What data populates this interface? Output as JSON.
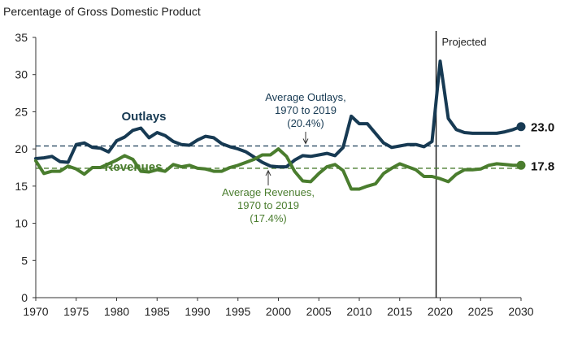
{
  "chart_data": {
    "type": "line",
    "title": "Percentage of Gross Domestic Product",
    "xlabel": "",
    "ylabel": "",
    "xlim": [
      1970,
      2030
    ],
    "ylim": [
      0,
      35
    ],
    "x_ticks": [
      1970,
      1975,
      1980,
      1985,
      1990,
      1995,
      2000,
      2005,
      2010,
      2015,
      2020,
      2025,
      2030
    ],
    "y_ticks": [
      0,
      5,
      10,
      15,
      20,
      25,
      30,
      35
    ],
    "projection_start": 2019.5,
    "projection_label": "Projected",
    "series": [
      {
        "name": "Outlays",
        "color": "#173a53",
        "end_label": "23.0",
        "average": 20.4,
        "average_label": [
          "Average Outlays,",
          "1970 to 2019",
          "(20.4%)"
        ],
        "x": [
          1970,
          1971,
          1972,
          1973,
          1974,
          1975,
          1976,
          1977,
          1978,
          1979,
          1980,
          1981,
          1982,
          1983,
          1984,
          1985,
          1986,
          1987,
          1988,
          1989,
          1990,
          1991,
          1992,
          1993,
          1994,
          1995,
          1996,
          1997,
          1998,
          1999,
          2000,
          2001,
          2002,
          2003,
          2004,
          2005,
          2006,
          2007,
          2008,
          2009,
          2010,
          2011,
          2012,
          2013,
          2014,
          2015,
          2016,
          2017,
          2018,
          2019,
          2020,
          2021,
          2022,
          2023,
          2024,
          2025,
          2026,
          2027,
          2028,
          2029,
          2030
        ],
        "values": [
          18.7,
          18.8,
          19.0,
          18.3,
          18.2,
          20.6,
          20.8,
          20.2,
          20.1,
          19.6,
          21.1,
          21.6,
          22.5,
          22.8,
          21.5,
          22.2,
          21.8,
          21.0,
          20.6,
          20.5,
          21.2,
          21.7,
          21.5,
          20.7,
          20.3,
          20.0,
          19.6,
          18.9,
          18.2,
          17.7,
          17.6,
          17.6,
          18.5,
          19.1,
          19.0,
          19.2,
          19.4,
          19.1,
          20.2,
          24.4,
          23.4,
          23.4,
          22.1,
          20.8,
          20.2,
          20.4,
          20.6,
          20.6,
          20.3,
          21.0,
          31.8,
          24.1,
          22.6,
          22.2,
          22.1,
          22.1,
          22.1,
          22.1,
          22.3,
          22.6,
          23.0
        ]
      },
      {
        "name": "Revenues",
        "color": "#4a7d2e",
        "end_label": "17.8",
        "average": 17.4,
        "average_label": [
          "Average Revenues,",
          "1970 to 2019",
          "(17.4%)"
        ],
        "x": [
          1970,
          1971,
          1972,
          1973,
          1974,
          1975,
          1976,
          1977,
          1978,
          1979,
          1980,
          1981,
          1982,
          1983,
          1984,
          1985,
          1986,
          1987,
          1988,
          1989,
          1990,
          1991,
          1992,
          1993,
          1994,
          1995,
          1996,
          1997,
          1998,
          1999,
          2000,
          2001,
          2002,
          2003,
          2004,
          2005,
          2006,
          2007,
          2008,
          2009,
          2010,
          2011,
          2012,
          2013,
          2014,
          2015,
          2016,
          2017,
          2018,
          2019,
          2020,
          2021,
          2022,
          2023,
          2024,
          2025,
          2026,
          2027,
          2028,
          2029,
          2030
        ],
        "values": [
          18.4,
          16.7,
          17.0,
          17.0,
          17.7,
          17.3,
          16.6,
          17.5,
          17.5,
          18.0,
          18.5,
          19.1,
          18.6,
          17.0,
          16.9,
          17.2,
          17.0,
          17.9,
          17.6,
          17.8,
          17.4,
          17.3,
          17.0,
          17.0,
          17.5,
          17.8,
          18.2,
          18.6,
          19.2,
          19.2,
          20.0,
          19.0,
          17.0,
          15.7,
          15.6,
          16.7,
          17.6,
          17.9,
          17.1,
          14.6,
          14.6,
          15.0,
          15.3,
          16.7,
          17.4,
          18.0,
          17.6,
          17.2,
          16.3,
          16.3,
          16.0,
          15.6,
          16.6,
          17.2,
          17.2,
          17.3,
          17.8,
          18.0,
          17.9,
          17.8,
          17.8
        ]
      }
    ]
  }
}
